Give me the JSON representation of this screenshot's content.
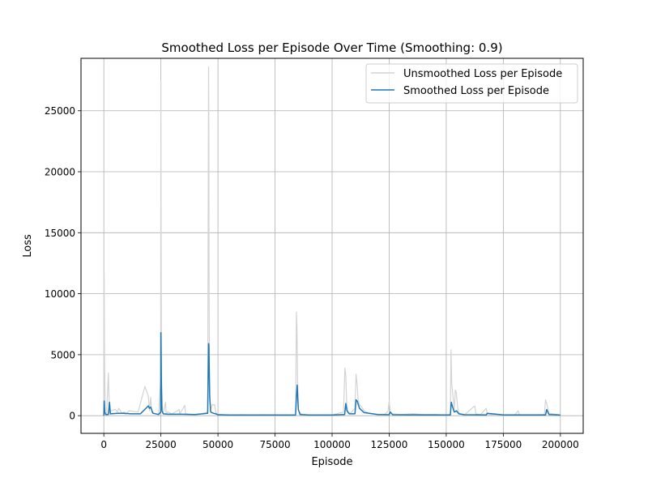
{
  "chart_data": {
    "type": "line",
    "title": "Smoothed Loss per Episode Over Time (Smoothing: 0.9)",
    "xlabel": "Episode",
    "ylabel": "Loss",
    "xlim": [
      -10000,
      210000
    ],
    "ylim": [
      -1450,
      29300
    ],
    "xticks": [
      0,
      25000,
      50000,
      75000,
      100000,
      125000,
      150000,
      175000,
      200000
    ],
    "xtick_labels": [
      "0",
      "25000",
      "50000",
      "75000",
      "100000",
      "125000",
      "150000",
      "175000",
      "200000"
    ],
    "yticks": [
      0,
      5000,
      10000,
      15000,
      20000,
      25000
    ],
    "ytick_labels": [
      "0",
      "5000",
      "10000",
      "15000",
      "20000",
      "25000"
    ],
    "grid": true,
    "legend_position": "upper right",
    "colors": {
      "unsmoothed": "#d3d3d3",
      "smoothed": "#1f77b4",
      "grid": "#b0b0b0"
    },
    "series": [
      {
        "name": "Unsmoothed Loss per Episode",
        "x": [
          0,
          150,
          300,
          600,
          1200,
          2000,
          2500,
          2700,
          3000,
          5000,
          6000,
          6500,
          8000,
          9000,
          9500,
          11000,
          15000,
          18000,
          19500,
          20000,
          20500,
          21000,
          22000,
          24000,
          24900,
          25000,
          25100,
          25300,
          25600,
          26000,
          27000,
          27300,
          28000,
          30000,
          33000,
          33300,
          35500,
          35800,
          38000,
          42000,
          45500,
          45900,
          46000,
          46100,
          46300,
          46800,
          47500,
          48500,
          49000,
          49500,
          51000,
          55000,
          60000,
          65000,
          70000,
          75000,
          80000,
          84000,
          84400,
          84600,
          84900,
          85200,
          85800,
          87000,
          90000,
          95000,
          100000,
          105000,
          105600,
          106000,
          106400,
          107000,
          108000,
          110000,
          110500,
          111000,
          111400,
          112000,
          113000,
          114000,
          116000,
          120000,
          123000,
          124500,
          125000,
          125500,
          126000,
          130000,
          135000,
          140000,
          145000,
          150000,
          151800,
          152100,
          152400,
          153000,
          153500,
          154000,
          154400,
          155000,
          155500,
          156500,
          158000,
          162500,
          163000,
          165000,
          167500,
          168000,
          170000,
          175000,
          180000,
          181500,
          182000,
          185000,
          190000,
          193000,
          193500,
          194000,
          195000,
          200000
        ],
        "y": [
          0,
          11800,
          5000,
          300,
          100,
          3500,
          200,
          100,
          400,
          500,
          300,
          600,
          200,
          300,
          100,
          400,
          300,
          2400,
          1600,
          400,
          1500,
          300,
          200,
          100,
          3000,
          27500,
          15000,
          500,
          300,
          200,
          1100,
          150,
          300,
          150,
          500,
          150,
          850,
          150,
          100,
          100,
          300,
          28600,
          24200,
          11000,
          2000,
          500,
          900,
          900,
          300,
          150,
          100,
          50,
          80,
          50,
          80,
          50,
          60,
          50,
          8500,
          7300,
          3000,
          500,
          250,
          100,
          60,
          60,
          60,
          300,
          3900,
          3300,
          1000,
          300,
          200,
          600,
          3400,
          2500,
          1300,
          900,
          700,
          400,
          200,
          100,
          80,
          400,
          1200,
          300,
          150,
          100,
          150,
          100,
          100,
          60,
          100,
          5400,
          2600,
          1500,
          500,
          2100,
          1900,
          700,
          250,
          150,
          80,
          800,
          150,
          80,
          600,
          100,
          80,
          60,
          60,
          400,
          80,
          60,
          60,
          100,
          1300,
          1000,
          200,
          60
        ]
      },
      {
        "name": "Smoothed Loss per Episode",
        "x": [
          0,
          150,
          400,
          800,
          2000,
          2500,
          2800,
          3000,
          6000,
          9000,
          12000,
          16000,
          19500,
          20000,
          20500,
          21500,
          24000,
          24900,
          25000,
          25200,
          25500,
          26000,
          28000,
          34000,
          40000,
          45500,
          45900,
          46000,
          46400,
          46800,
          48000,
          49000,
          50000,
          55000,
          65000,
          75000,
          84000,
          84400,
          84700,
          85200,
          86000,
          90000,
          100000,
          105500,
          106000,
          106500,
          107500,
          110000,
          110500,
          111000,
          112000,
          114000,
          120000,
          125000,
          125500,
          126500,
          140000,
          151800,
          152200,
          152800,
          153500,
          154500,
          155500,
          158000,
          167500,
          168000,
          175000,
          193500,
          194000,
          195000,
          200000
        ],
        "y": [
          0,
          1200,
          300,
          100,
          100,
          1100,
          300,
          150,
          200,
          200,
          150,
          150,
          800,
          600,
          700,
          200,
          100,
          300,
          6800,
          3000,
          400,
          150,
          120,
          120,
          100,
          200,
          5900,
          5800,
          1500,
          300,
          200,
          150,
          80,
          50,
          50,
          50,
          50,
          1600,
          2500,
          500,
          100,
          50,
          50,
          100,
          1000,
          400,
          150,
          150,
          1300,
          1200,
          600,
          250,
          100,
          80,
          300,
          80,
          60,
          60,
          1100,
          700,
          300,
          400,
          150,
          80,
          60,
          200,
          60,
          60,
          500,
          100,
          50
        ]
      }
    ]
  }
}
